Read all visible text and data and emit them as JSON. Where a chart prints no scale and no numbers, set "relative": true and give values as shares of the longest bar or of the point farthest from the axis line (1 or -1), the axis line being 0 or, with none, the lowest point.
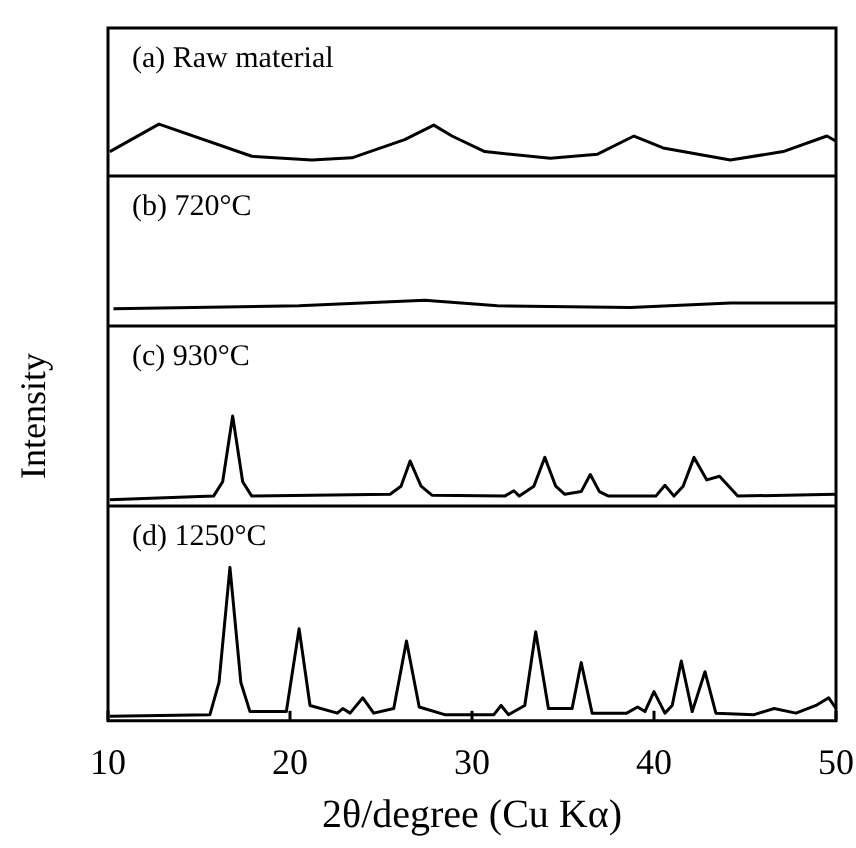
{
  "chart_data": [
    {
      "type": "line",
      "title": "(a) Raw material",
      "color": "#000000",
      "relative": true,
      "xlim": [
        10,
        50
      ],
      "tick_labels": false,
      "x": [
        10.1,
        12.8,
        17.9,
        21.2,
        23.4,
        26.3,
        27.9,
        28.9,
        30.7,
        34.3,
        36.9,
        38.9,
        40.5,
        44.2,
        47.1,
        49.5,
        50
      ],
      "values": [
        0.47,
        1,
        0.38,
        0.31,
        0.35,
        0.7,
        0.98,
        0.77,
        0.47,
        0.34,
        0.42,
        0.77,
        0.54,
        0.31,
        0.47,
        0.77,
        0.67
      ]
    },
    {
      "type": "line",
      "title": "(b) 720°C",
      "color": "#000000",
      "relative": true,
      "xlim": [
        10,
        50
      ],
      "tick_labels": false,
      "x": [
        10.3,
        20.5,
        27.4,
        31.4,
        38.7,
        44.2,
        49.6,
        50
      ],
      "values": [
        0.67,
        0.78,
        1,
        0.78,
        0.72,
        0.89,
        0.89,
        0.89
      ]
    },
    {
      "type": "line",
      "title": "(c) 930°C",
      "ylabel": "Intensity",
      "color": "#000000",
      "relative": true,
      "xlim": [
        10,
        50
      ],
      "tick_labels": false,
      "x": [
        10.1,
        15.8,
        16.3,
        16.85,
        17.4,
        17.9,
        25.5,
        26.1,
        26.6,
        27.2,
        27.8,
        31.8,
        32.3,
        32.6,
        33.4,
        34.0,
        34.6,
        35.1,
        36.0,
        36.5,
        37.0,
        37.5,
        40.1,
        40.6,
        41.1,
        41.6,
        42.2,
        42.9,
        43.6,
        44.6,
        50
      ],
      "values": [
        0.07,
        0.11,
        0.27,
        1,
        0.27,
        0.11,
        0.13,
        0.22,
        0.5,
        0.22,
        0.12,
        0.11,
        0.17,
        0.11,
        0.22,
        0.54,
        0.22,
        0.13,
        0.16,
        0.35,
        0.16,
        0.11,
        0.11,
        0.23,
        0.11,
        0.22,
        0.54,
        0.29,
        0.33,
        0.11,
        0.13
      ]
    },
    {
      "type": "line",
      "title": "(d) 1250°C",
      "xlabel": "2θ/degree (Cu Kα)",
      "color": "#000000",
      "relative": true,
      "xlim": [
        10,
        50
      ],
      "xticks": [
        10,
        20,
        30,
        40,
        50
      ],
      "tick_labels": "x",
      "x": [
        10.1,
        15.6,
        16.1,
        16.7,
        17.3,
        17.8,
        19.8,
        20.5,
        21.1,
        22.6,
        22.9,
        23.3,
        24.0,
        24.6,
        25.7,
        26.4,
        27.1,
        28.5,
        31.2,
        31.6,
        32.0,
        32.9,
        33.5,
        34.2,
        35.5,
        36.0,
        36.6,
        37.0,
        38.5,
        39.1,
        39.5,
        40.0,
        40.6,
        41.0,
        41.5,
        42.1,
        42.8,
        43.4,
        45.5,
        46.6,
        47.8,
        48.9,
        49.6,
        50
      ],
      "values": [
        0.03,
        0.04,
        0.25,
        1,
        0.25,
        0.06,
        0.06,
        0.6,
        0.1,
        0.05,
        0.08,
        0.05,
        0.15,
        0.05,
        0.08,
        0.52,
        0.09,
        0.04,
        0.04,
        0.1,
        0.04,
        0.1,
        0.58,
        0.08,
        0.08,
        0.38,
        0.05,
        0.05,
        0.05,
        0.09,
        0.06,
        0.19,
        0.05,
        0.1,
        0.39,
        0.06,
        0.32,
        0.05,
        0.04,
        0.08,
        0.05,
        0.1,
        0.15,
        0.08
      ]
    }
  ]
}
